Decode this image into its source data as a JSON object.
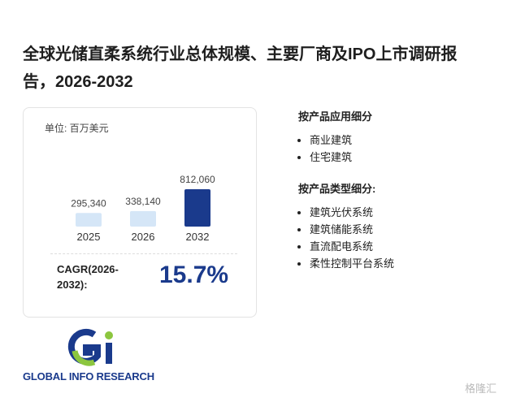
{
  "title": "全球光储直柔系统行业总体规模、主要厂商及IPO上市调研报告，2026-2032",
  "chart_data": {
    "type": "bar",
    "unit": "单位: 百万美元",
    "categories": [
      "2025",
      "2026",
      "2032"
    ],
    "values": [
      295340,
      338140,
      812060
    ],
    "value_labels": [
      "295,340",
      "338,140",
      "812,060"
    ],
    "colors": [
      "#d5e6f7",
      "#d5e6f7",
      "#1a3a8c"
    ]
  },
  "cagr": {
    "label": "CAGR(2026-2032):",
    "value": "15.7%"
  },
  "segments": [
    {
      "title": "按产品应用细分",
      "items": [
        "商业建筑",
        "住宅建筑"
      ]
    },
    {
      "title": "按产品类型细分:",
      "items": [
        "建筑光伏系统",
        "建筑储能系统",
        "直流配电系统",
        "柔性控制平台系统"
      ]
    }
  ],
  "logo": {
    "text": "GLOBAL INFO RESEARCH"
  },
  "watermark": "格隆汇"
}
